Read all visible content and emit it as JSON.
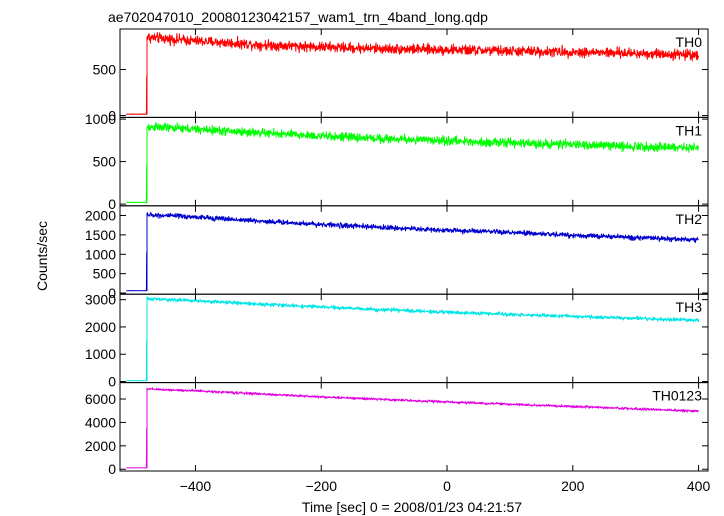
{
  "chart_data": {
    "type": "line",
    "title": "ae702047010_20080123042157_wam1_trn_4band_long.qdp",
    "xlabel": "Time [sec] 0 = 2008/01/23 04:21:57",
    "ylabel": "Counts/sec",
    "xlim": [
      -520,
      415
    ],
    "xticks": [
      -400,
      -200,
      0,
      200,
      400
    ],
    "xtick_labels": [
      "−400",
      "−200",
      "0",
      "200",
      "400"
    ],
    "grid": false,
    "shared_x_axis": true,
    "panels": [
      {
        "name": "TH0",
        "color": "#ff0000",
        "ylim": [
          -20,
          940
        ],
        "yticks": [
          0,
          500
        ],
        "ytick_labels": [
          "0",
          "500"
        ],
        "pre_level": 15,
        "onset_time": -477,
        "peak_value": 850,
        "end_value": 660,
        "noise": 60,
        "points": [
          [
            -510,
            15
          ],
          [
            -478,
            15
          ],
          [
            -477,
            850
          ],
          [
            -400,
            810
          ],
          [
            -300,
            770
          ],
          [
            -200,
            745
          ],
          [
            -100,
            725
          ],
          [
            0,
            715
          ],
          [
            100,
            700
          ],
          [
            200,
            690
          ],
          [
            300,
            675
          ],
          [
            400,
            660
          ]
        ]
      },
      {
        "name": "TH1",
        "color": "#00ff00",
        "ylim": [
          -20,
          1020
        ],
        "yticks": [
          0,
          500,
          1000
        ],
        "ytick_labels": [
          "0",
          "500",
          "1000"
        ],
        "pre_level": 20,
        "onset_time": -477,
        "peak_value": 910,
        "end_value": 660,
        "noise": 55,
        "points": [
          [
            -510,
            20
          ],
          [
            -478,
            20
          ],
          [
            -477,
            910
          ],
          [
            -400,
            880
          ],
          [
            -300,
            840
          ],
          [
            -200,
            800
          ],
          [
            -100,
            770
          ],
          [
            0,
            745
          ],
          [
            100,
            720
          ],
          [
            200,
            700
          ],
          [
            300,
            680
          ],
          [
            400,
            660
          ]
        ]
      },
      {
        "name": "TH2",
        "color": "#0000cc",
        "ylim": [
          -30,
          2250
        ],
        "yticks": [
          0,
          500,
          1000,
          1500,
          2000
        ],
        "ytick_labels": [
          "0",
          "500",
          "1000",
          "1500",
          "2000"
        ],
        "pre_level": 60,
        "onset_time": -477,
        "peak_value": 2020,
        "end_value": 1370,
        "noise": 70,
        "points": [
          [
            -510,
            60
          ],
          [
            -478,
            60
          ],
          [
            -477,
            2020
          ],
          [
            -400,
            1960
          ],
          [
            -300,
            1860
          ],
          [
            -200,
            1770
          ],
          [
            -100,
            1690
          ],
          [
            0,
            1620
          ],
          [
            100,
            1560
          ],
          [
            200,
            1490
          ],
          [
            300,
            1430
          ],
          [
            400,
            1370
          ]
        ]
      },
      {
        "name": "TH3",
        "color": "#00e5e5",
        "ylim": [
          -40,
          3200
        ],
        "yticks": [
          0,
          1000,
          2000,
          3000
        ],
        "ytick_labels": [
          "0",
          "1000",
          "2000",
          "3000"
        ],
        "pre_level": 30,
        "onset_time": -477,
        "peak_value": 3030,
        "end_value": 2240,
        "noise": 70,
        "points": [
          [
            -510,
            30
          ],
          [
            -478,
            30
          ],
          [
            -477,
            3030
          ],
          [
            -400,
            2960
          ],
          [
            -300,
            2840
          ],
          [
            -200,
            2730
          ],
          [
            -100,
            2630
          ],
          [
            0,
            2540
          ],
          [
            100,
            2460
          ],
          [
            200,
            2390
          ],
          [
            300,
            2310
          ],
          [
            400,
            2240
          ]
        ]
      },
      {
        "name": "TH0123",
        "color": "#e000e0",
        "ylim": [
          -150,
          7400
        ],
        "yticks": [
          0,
          2000,
          4000,
          6000
        ],
        "ytick_labels": [
          "0",
          "2000",
          "4000",
          "6000"
        ],
        "pre_level": 120,
        "onset_time": -477,
        "peak_value": 6850,
        "end_value": 4960,
        "noise": 110,
        "points": [
          [
            -510,
            120
          ],
          [
            -478,
            120
          ],
          [
            -477,
            6850
          ],
          [
            -400,
            6700
          ],
          [
            -300,
            6440
          ],
          [
            -200,
            6180
          ],
          [
            -100,
            5960
          ],
          [
            0,
            5750
          ],
          [
            100,
            5550
          ],
          [
            200,
            5360
          ],
          [
            300,
            5160
          ],
          [
            400,
            4960
          ]
        ]
      }
    ]
  }
}
